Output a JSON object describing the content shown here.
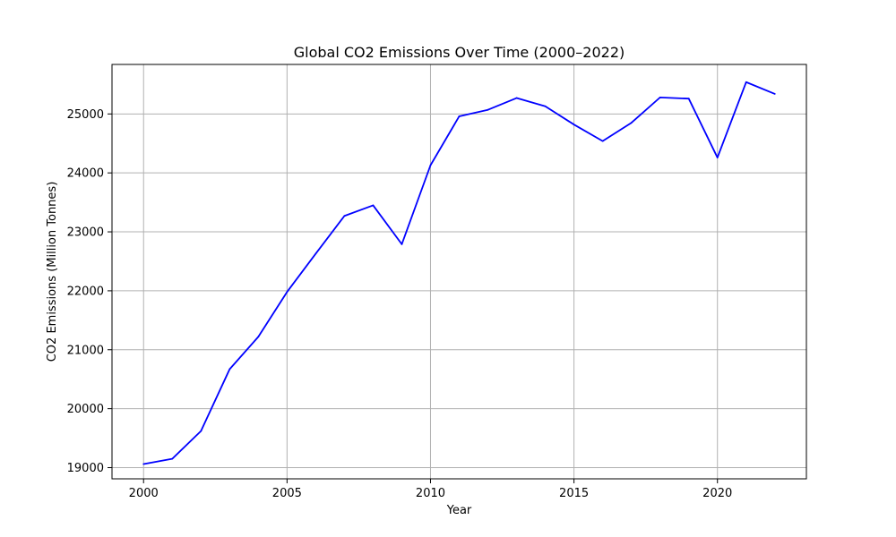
{
  "chart_data": {
    "type": "line",
    "title": "Global CO2 Emissions Over Time (2000–2022)",
    "xlabel": "Year",
    "ylabel": "CO2 Emissions (Million Tonnes)",
    "xlim": [
      1998.9,
      2023.1
    ],
    "ylim": [
      18810,
      25840
    ],
    "xticks": [
      2000,
      2005,
      2010,
      2015,
      2020
    ],
    "yticks": [
      19000,
      20000,
      21000,
      22000,
      23000,
      24000,
      25000
    ],
    "grid": true,
    "legend": "none",
    "series": [
      {
        "color": "#0000ff",
        "x": [
          2000,
          2001,
          2002,
          2003,
          2004,
          2005,
          2006,
          2007,
          2008,
          2009,
          2010,
          2011,
          2012,
          2013,
          2014,
          2015,
          2016,
          2017,
          2018,
          2019,
          2020,
          2021,
          2022
        ],
        "y": [
          19060,
          19150,
          19620,
          20670,
          21220,
          21980,
          22630,
          23270,
          23450,
          22790,
          24130,
          24960,
          25070,
          25270,
          25130,
          24820,
          24540,
          24850,
          25280,
          25260,
          24260,
          25540,
          25340
        ]
      }
    ]
  }
}
